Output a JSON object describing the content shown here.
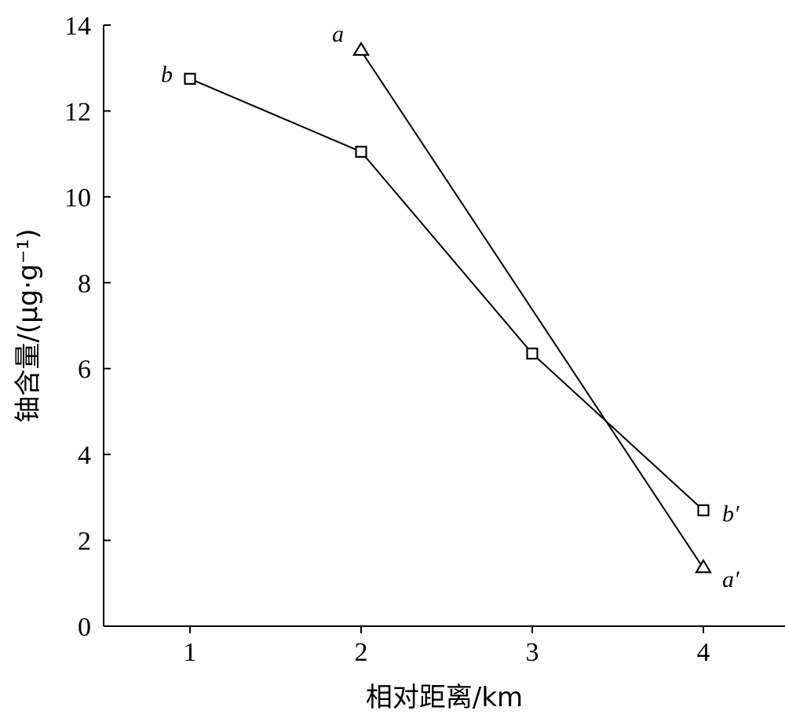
{
  "chart_data": {
    "type": "line",
    "title": "",
    "xlabel": "相对距离/km",
    "ylabel": "铀含量/(μg·g⁻¹)",
    "xlim": [
      0.5,
      5.0
    ],
    "ylim": [
      0,
      14
    ],
    "x_ticks": [
      1,
      2,
      3,
      4
    ],
    "y_ticks": [
      0,
      2,
      4,
      6,
      8,
      10,
      12,
      14
    ],
    "grid": false,
    "series": [
      {
        "marker": "triangle",
        "x": [
          2,
          4
        ],
        "y": [
          13.4,
          1.35
        ],
        "start_label": "a",
        "end_label": "a′"
      },
      {
        "marker": "square",
        "x": [
          1,
          2,
          3,
          4
        ],
        "y": [
          12.75,
          11.05,
          6.35,
          2.7
        ],
        "start_label": "b",
        "end_label": "b′"
      }
    ]
  }
}
